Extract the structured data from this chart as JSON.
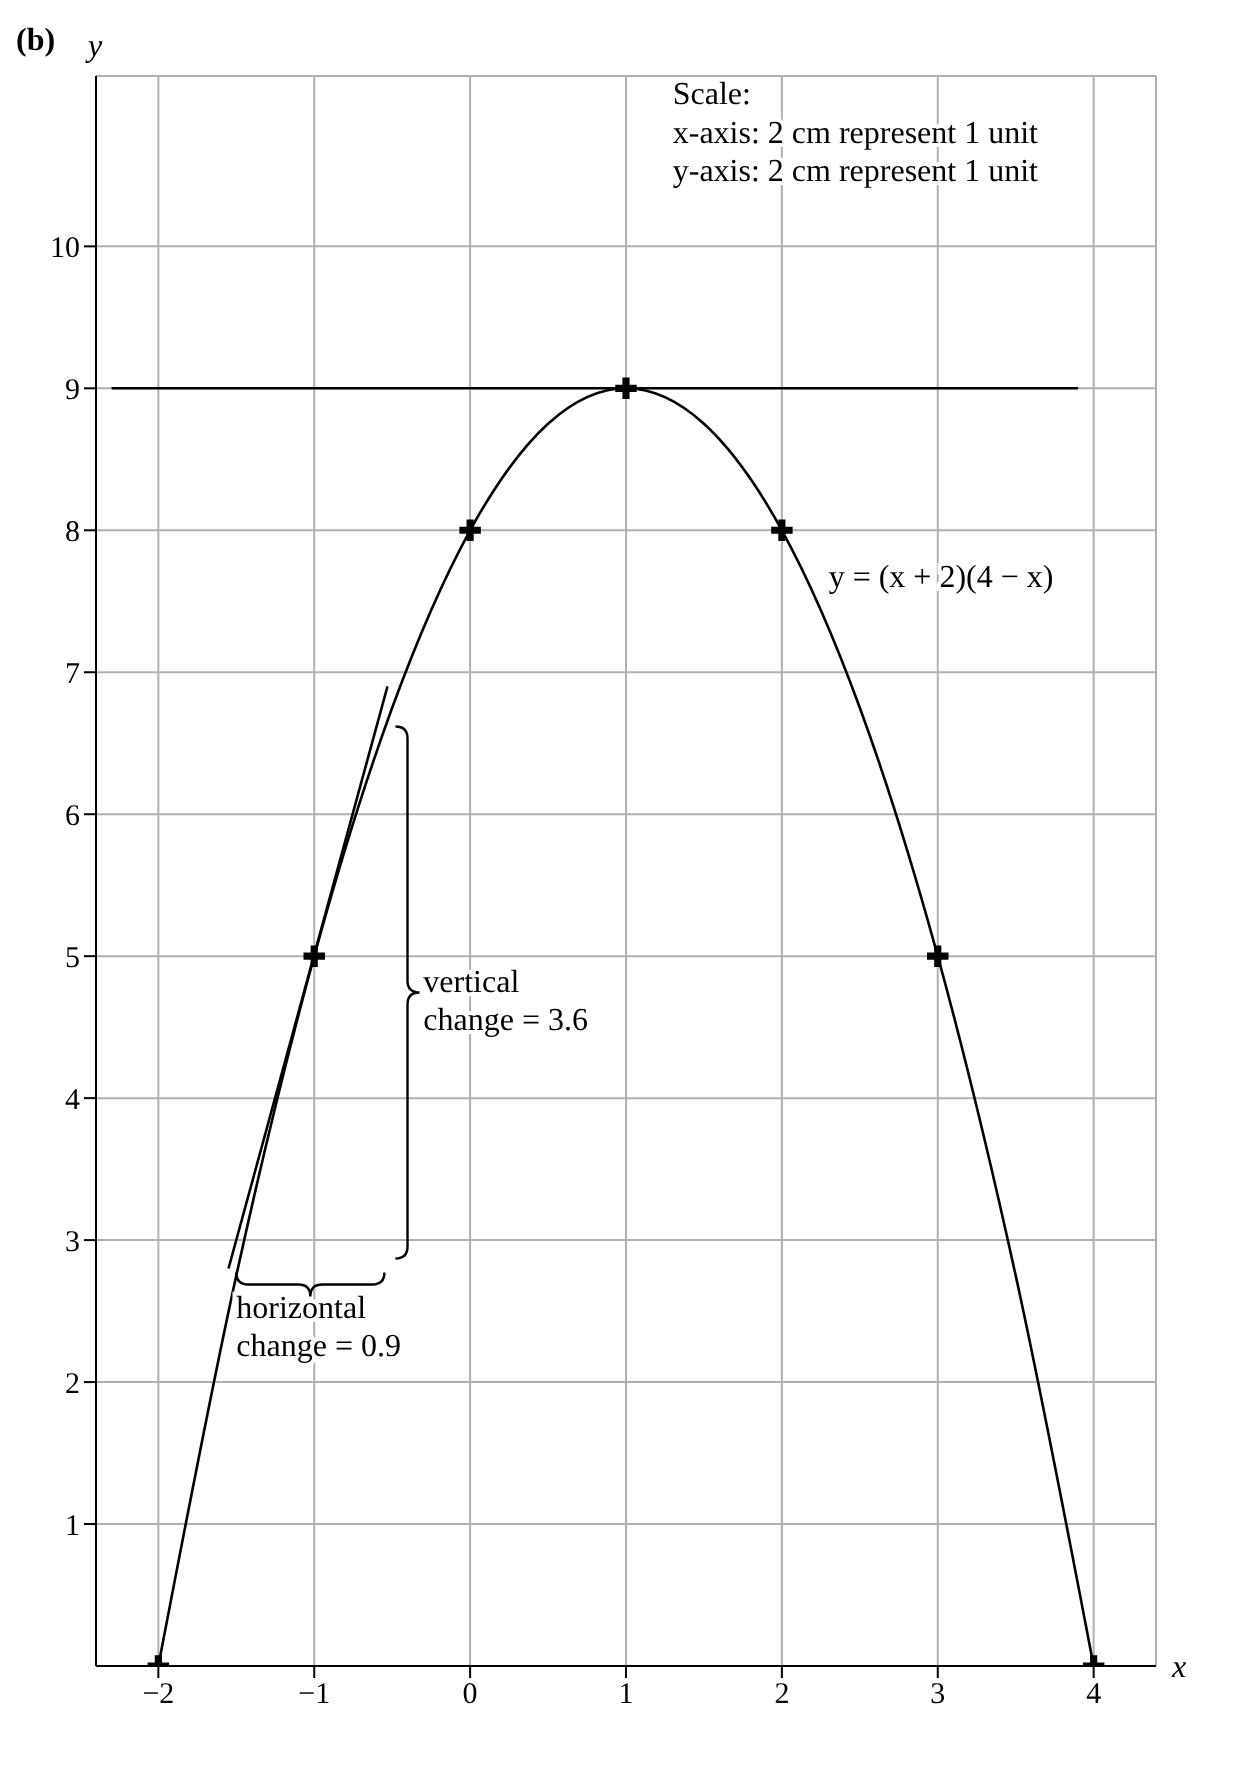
{
  "chart_data": {
    "type": "line",
    "title": "(b)",
    "xlabel": "x",
    "ylabel": "y",
    "xlim": [
      -2.4,
      4.4
    ],
    "ylim": [
      0,
      11.2
    ],
    "xticks": [
      -2,
      -1,
      0,
      1,
      2,
      3,
      4
    ],
    "yticks": [
      1,
      2,
      3,
      4,
      5,
      6,
      7,
      8,
      9,
      10
    ],
    "grid": true,
    "legend": false,
    "series": [
      {
        "color": "#000000",
        "marker": "none",
        "x": [
          -2,
          -1.5,
          -1,
          -0.5,
          0,
          0.5,
          1,
          1.5,
          2,
          2.5,
          3,
          3.5,
          4
        ],
        "values": [
          0,
          2.75,
          5,
          6.75,
          8,
          8.75,
          9,
          8.75,
          8,
          6.75,
          5,
          2.75,
          0
        ]
      },
      {
        "type": "scatter",
        "color": "#000000",
        "marker": "cross",
        "x": [
          -2,
          -1,
          0,
          1,
          2,
          3,
          4
        ],
        "values": [
          0,
          5,
          8,
          9,
          8,
          5,
          0
        ]
      },
      {
        "color": "#000000",
        "marker": "none",
        "x": [
          -1.55,
          -0.53
        ],
        "values": [
          2.8,
          6.9
        ]
      },
      {
        "color": "#000000",
        "marker": "none",
        "x": [
          -2.3,
          3.9
        ],
        "values": [
          9,
          9
        ]
      }
    ],
    "annotations": [
      "Scale:",
      "x-axis: 2 cm represent 1 unit",
      "y-axis: 2 cm represent 1 unit",
      "y = (x + 2)(4 − x)",
      "vertical change = 3.6",
      "horizontal change = 0.9"
    ]
  }
}
